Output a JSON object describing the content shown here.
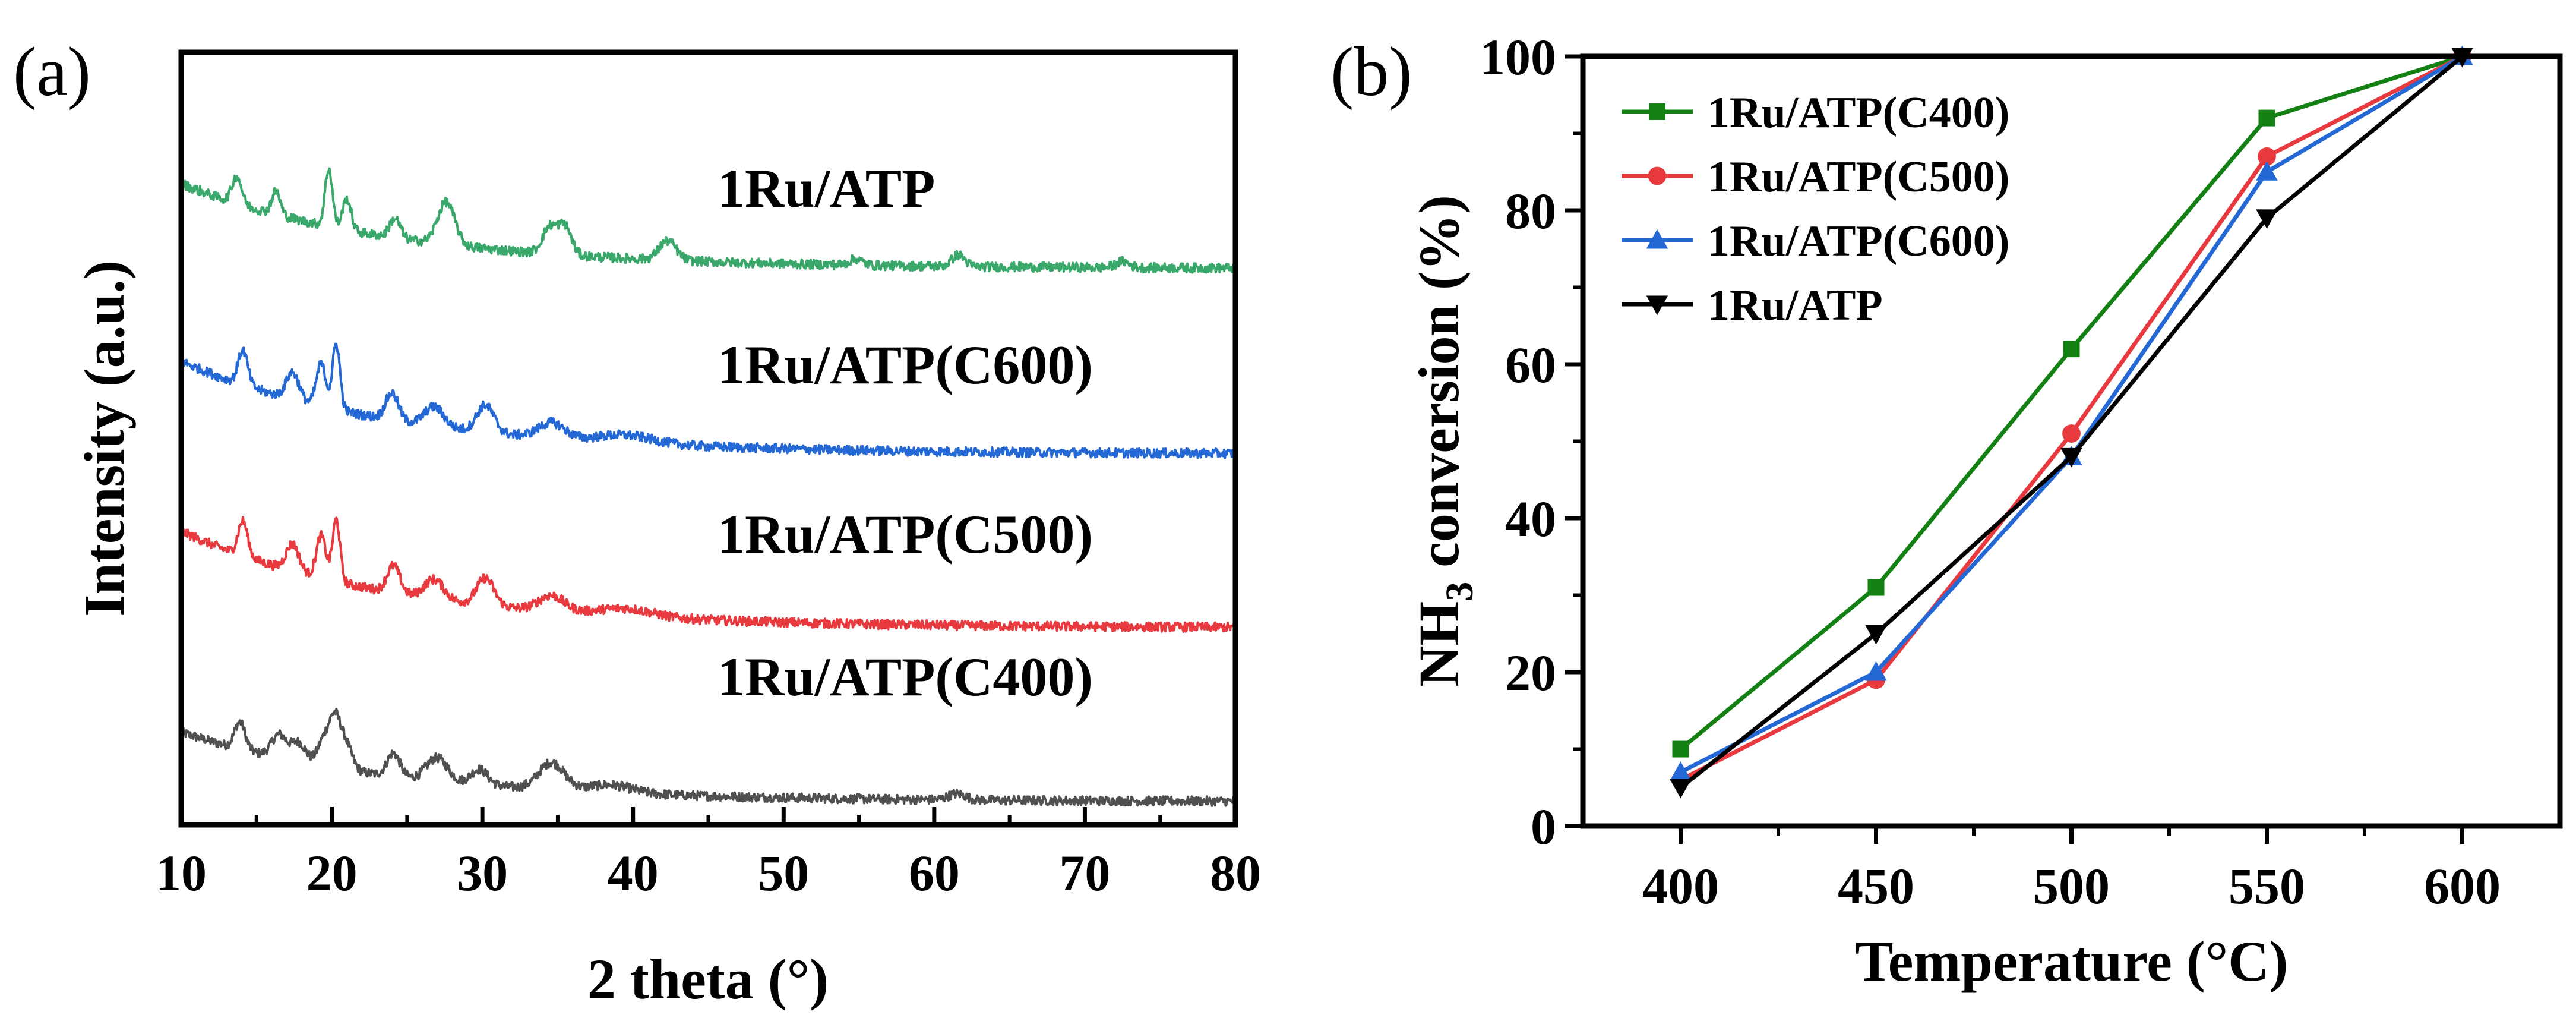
{
  "chart_data": [
    {
      "panel": "(a)",
      "type": "line",
      "title": "",
      "xlabel": "2 theta (°)",
      "ylabel": "Intensity (a.u.)",
      "xlim": [
        10,
        80
      ],
      "xticks": [
        10,
        20,
        30,
        40,
        50,
        60,
        70,
        80
      ],
      "yticks_shown": false,
      "series": [
        {
          "name": "1Ru/ATP(C400)",
          "color": "#505050",
          "baseline_end": 0.03,
          "baseline_start": 0.12,
          "peaks": [
            {
              "x": 13.9,
              "h": 0.035,
              "w": 0.5
            },
            {
              "x": 16.5,
              "h": 0.03,
              "w": 0.7
            },
            {
              "x": 17.8,
              "h": 0.025,
              "w": 0.7
            },
            {
              "x": 19.5,
              "h": 0.035,
              "w": 0.6
            },
            {
              "x": 20.2,
              "h": 0.055,
              "w": 0.5
            },
            {
              "x": 20.9,
              "h": 0.035,
              "w": 0.6
            },
            {
              "x": 24.1,
              "h": 0.03,
              "w": 0.6
            },
            {
              "x": 27.0,
              "h": 0.03,
              "w": 1.0
            },
            {
              "x": 29.8,
              "h": 0.02,
              "w": 0.8
            },
            {
              "x": 34.6,
              "h": 0.035,
              "w": 1.2
            },
            {
              "x": 38.5,
              "h": 0.01,
              "w": 2.0
            },
            {
              "x": 61.5,
              "h": 0.008,
              "w": 0.8
            }
          ]
        },
        {
          "name": "1Ru/ATP(C500)",
          "color": "#e8393e",
          "baseline_end": 0.255,
          "baseline_start": 0.38,
          "peaks": [
            {
              "x": 14.1,
              "h": 0.045,
              "w": 0.45
            },
            {
              "x": 17.4,
              "h": 0.035,
              "w": 0.6
            },
            {
              "x": 19.3,
              "h": 0.055,
              "w": 0.45
            },
            {
              "x": 20.3,
              "h": 0.08,
              "w": 0.35
            },
            {
              "x": 24.1,
              "h": 0.035,
              "w": 0.6
            },
            {
              "x": 26.8,
              "h": 0.025,
              "w": 0.9
            },
            {
              "x": 30.2,
              "h": 0.035,
              "w": 0.8
            },
            {
              "x": 34.6,
              "h": 0.02,
              "w": 1.2
            },
            {
              "x": 39.5,
              "h": 0.01,
              "w": 2.5
            }
          ]
        },
        {
          "name": "1Ru/ATP(C600)",
          "color": "#2468d6",
          "baseline_end": 0.48,
          "baseline_start": 0.6,
          "peaks": [
            {
              "x": 14.1,
              "h": 0.045,
              "w": 0.45
            },
            {
              "x": 17.4,
              "h": 0.035,
              "w": 0.6
            },
            {
              "x": 19.3,
              "h": 0.055,
              "w": 0.45
            },
            {
              "x": 20.3,
              "h": 0.085,
              "w": 0.35
            },
            {
              "x": 24.0,
              "h": 0.035,
              "w": 0.6
            },
            {
              "x": 26.8,
              "h": 0.025,
              "w": 0.9
            },
            {
              "x": 30.2,
              "h": 0.035,
              "w": 0.8
            },
            {
              "x": 34.6,
              "h": 0.02,
              "w": 1.2
            },
            {
              "x": 39.5,
              "h": 0.01,
              "w": 2.5
            }
          ]
        },
        {
          "name": "1Ru/ATP",
          "color": "#3aa86b",
          "baseline_end": 0.72,
          "baseline_start": 0.83,
          "peaks": [
            {
              "x": 13.7,
              "h": 0.035,
              "w": 0.45
            },
            {
              "x": 16.3,
              "h": 0.03,
              "w": 0.4
            },
            {
              "x": 19.8,
              "h": 0.075,
              "w": 0.35
            },
            {
              "x": 21.0,
              "h": 0.04,
              "w": 0.4
            },
            {
              "x": 24.2,
              "h": 0.025,
              "w": 0.5
            },
            {
              "x": 27.6,
              "h": 0.055,
              "w": 0.8
            },
            {
              "x": 34.5,
              "h": 0.035,
              "w": 0.7
            },
            {
              "x": 35.5,
              "h": 0.035,
              "w": 0.6
            },
            {
              "x": 42.3,
              "h": 0.025,
              "w": 0.8
            },
            {
              "x": 54.8,
              "h": 0.008,
              "w": 0.6
            },
            {
              "x": 61.6,
              "h": 0.015,
              "w": 0.6
            },
            {
              "x": 72.5,
              "h": 0.008,
              "w": 0.6
            }
          ]
        }
      ],
      "series_labels": [
        {
          "text": "1Ru/ATP",
          "series": "1Ru/ATP"
        },
        {
          "text": "1Ru/ATP(C600)",
          "series": "1Ru/ATP(C600)"
        },
        {
          "text": "1Ru/ATP(C500)",
          "series": "1Ru/ATP(C500)"
        },
        {
          "text": "1Ru/ATP(C400)",
          "series": "1Ru/ATP(C400)"
        }
      ]
    },
    {
      "panel": "(b)",
      "type": "line",
      "title": "",
      "xlabel": "Temperature (°C)",
      "ylabel_main": "NH",
      "ylabel_sub": "3",
      "ylabel_rest": " conversion (%)",
      "xlim": [
        375,
        625
      ],
      "ylim": [
        0,
        100
      ],
      "xticks": [
        400,
        450,
        500,
        550,
        600
      ],
      "yticks": [
        0,
        20,
        40,
        60,
        80,
        100
      ],
      "legend_position": "top-left",
      "x": [
        400,
        450,
        500,
        550,
        600
      ],
      "series": [
        {
          "name": "1Ru/ATP(C400)",
          "color": "#138013",
          "marker": "square",
          "values": [
            10,
            31,
            62,
            92,
            100
          ]
        },
        {
          "name": "1Ru/ATP(C500)",
          "color": "#e8393e",
          "marker": "circle",
          "values": [
            6,
            19,
            51,
            87,
            100
          ]
        },
        {
          "name": "1Ru/ATP(C600)",
          "color": "#2468d6",
          "marker": "triangle-up",
          "values": [
            7,
            20,
            48,
            85,
            100
          ]
        },
        {
          "name": "1Ru/ATP",
          "color": "#000000",
          "marker": "triangle-down",
          "values": [
            5,
            25,
            48,
            79,
            100
          ]
        }
      ]
    }
  ]
}
